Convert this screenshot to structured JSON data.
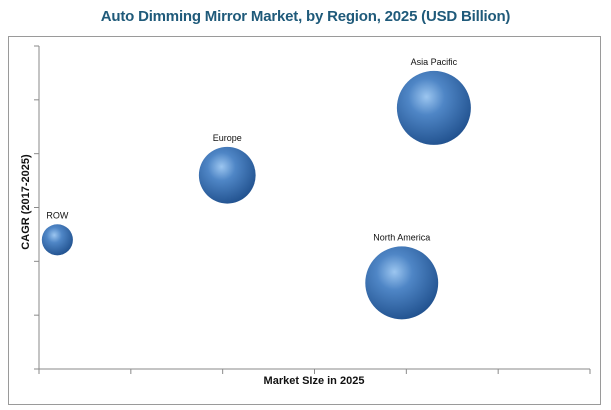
{
  "chart_data": {
    "type": "scatter",
    "title": "Auto Dimming Mirror Market, by Region, 2025 (USD Billion)",
    "xlabel": "Market SIze in 2025",
    "ylabel": "CAGR (2017-2025)",
    "xlim": [
      0,
      6
    ],
    "ylim": [
      0,
      6
    ],
    "x_ticks_count": 6,
    "y_ticks_count": 6,
    "tick_labels_visible": false,
    "grid": false,
    "bubble_color": "#3f73b3",
    "series": [
      {
        "points": [
          {
            "label": "ROW",
            "x": 0.2,
            "y": 2.4,
            "size": 0.3
          },
          {
            "label": "Europe",
            "x": 2.05,
            "y": 3.6,
            "size": 1.0
          },
          {
            "label": "Asia Pacific",
            "x": 4.3,
            "y": 4.85,
            "size": 1.7
          },
          {
            "label": "North America",
            "x": 3.95,
            "y": 1.6,
            "size": 1.65
          }
        ]
      }
    ]
  }
}
